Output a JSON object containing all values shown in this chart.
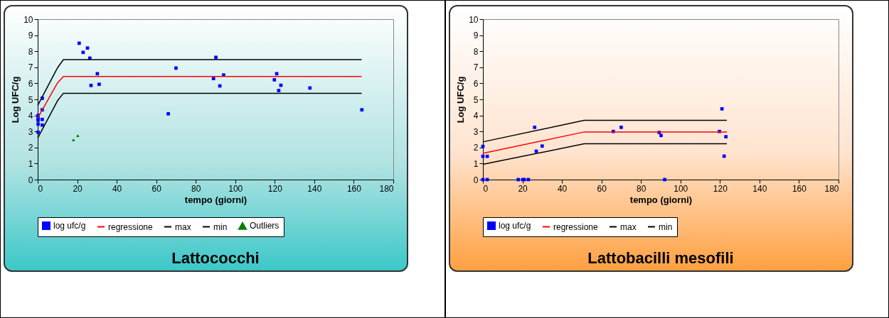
{
  "chart_data": [
    {
      "type": "scatter",
      "title": "Lattococchi",
      "xlabel": "tempo (giorni)",
      "ylabel": "Log UFC/g",
      "xlim": [
        0,
        180
      ],
      "xticks": [
        0,
        20,
        40,
        60,
        80,
        100,
        120,
        140,
        160,
        180
      ],
      "ylim": [
        0,
        10
      ],
      "yticks": [
        0,
        1,
        2,
        3,
        4,
        5,
        6,
        7,
        8,
        9,
        10
      ],
      "grid": false,
      "legend": "bottom",
      "series": [
        {
          "name": "log ufc/g",
          "type": "scatter",
          "marker": "square",
          "color": "#0000ff",
          "x": [
            0.2,
            0.2,
            0.2,
            0.2,
            0.2,
            2.3,
            2.3,
            2.3,
            2.3,
            21,
            23,
            25.2,
            26.4,
            30.2,
            27,
            31.1,
            66.1,
            70,
            90.2,
            89,
            94.1,
            92.2,
            121,
            119.8,
            123.1,
            122,
            137.8,
            164.1
          ],
          "values": [
            4.0,
            3.8,
            3.7,
            3.46,
            2.95,
            5.07,
            4.35,
            3.75,
            3.4,
            8.5,
            7.93,
            8.2,
            7.57,
            6.6,
            5.87,
            5.94,
            4.1,
            6.95,
            7.62,
            6.3,
            6.52,
            5.84,
            6.6,
            6.22,
            5.88,
            5.55,
            5.71,
            4.35
          ]
        },
        {
          "name": "regressione",
          "type": "line",
          "color": "#ff0000",
          "x": [
            0,
            10,
            13,
            164
          ],
          "values": [
            3.83,
            6.02,
            6.43,
            6.43
          ]
        },
        {
          "name": "max",
          "type": "line",
          "color": "#000000",
          "x": [
            0,
            10,
            13,
            164
          ],
          "values": [
            4.62,
            6.96,
            7.48,
            7.48
          ]
        },
        {
          "name": "min",
          "type": "line",
          "color": "#000000",
          "x": [
            0,
            10,
            13,
            164
          ],
          "values": [
            2.58,
            4.91,
            5.38,
            5.38
          ]
        },
        {
          "name": "Outliers",
          "type": "scatter",
          "marker": "triangle",
          "color": "#008000",
          "x": [
            18.1,
            20.3
          ],
          "values": [
            2.48,
            2.74
          ]
        }
      ]
    },
    {
      "type": "scatter",
      "title": "Lattobacilli mesofili",
      "xlabel": "tempo (giorni)",
      "ylabel": "Log UFC/g",
      "xlim": [
        0,
        180
      ],
      "xticks": [
        0,
        20,
        40,
        60,
        80,
        100,
        120,
        140,
        160,
        180
      ],
      "ylim": [
        0,
        10
      ],
      "yticks": [
        0,
        1,
        2,
        3,
        4,
        5,
        6,
        7,
        8,
        9,
        10
      ],
      "grid": false,
      "legend": "bottom",
      "series": [
        {
          "name": "log ufc/g",
          "type": "scatter",
          "marker": "square",
          "color": "#0000ff",
          "x": [
            0,
            0,
            2.2,
            0,
            2.2,
            17.9,
            20.2,
            20.9,
            23,
            26.2,
            27,
            30,
            66,
            70,
            89.2,
            90.2,
            92,
            121,
            119.7,
            123,
            122.1
          ],
          "values": [
            2.07,
            1.45,
            1.45,
            0,
            0,
            0,
            0,
            0,
            0,
            3.26,
            1.77,
            2.09,
            3.0,
            3.26,
            2.94,
            2.75,
            0,
            4.41,
            3.0,
            2.67,
            1.46
          ]
        },
        {
          "name": "regressione",
          "type": "line",
          "color": "#ff0000",
          "x": [
            0,
            51.3,
            123.5
          ],
          "values": [
            1.64,
            2.97,
            2.97
          ]
        },
        {
          "name": "max",
          "type": "line",
          "color": "#000000",
          "x": [
            0,
            51.3,
            123.5
          ],
          "values": [
            2.35,
            3.69,
            3.69
          ]
        },
        {
          "name": "min",
          "type": "line",
          "color": "#000000",
          "x": [
            0,
            51.3,
            123.5
          ],
          "values": [
            0.95,
            2.23,
            2.23
          ]
        }
      ]
    }
  ]
}
